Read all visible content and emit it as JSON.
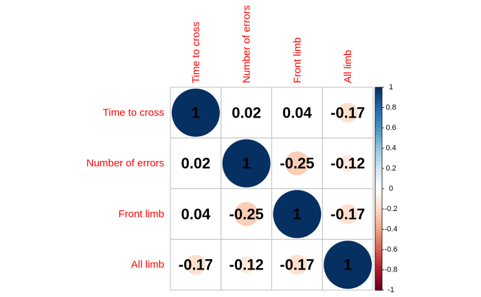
{
  "chart_data": {
    "type": "heatmap",
    "variables": [
      "Time to cross",
      "Number of errors",
      "Front limb",
      "All limb"
    ],
    "matrix": [
      [
        1,
        0.02,
        0.04,
        -0.17
      ],
      [
        0.02,
        1,
        -0.25,
        -0.12
      ],
      [
        0.04,
        -0.25,
        1,
        -0.17
      ],
      [
        -0.17,
        -0.12,
        -0.17,
        1
      ]
    ],
    "cell_labels": [
      [
        "1",
        "0.02",
        "0.04",
        "-0.17"
      ],
      [
        "0.02",
        "1",
        "-0.25",
        "-0.12"
      ],
      [
        "0.04",
        "-0.25",
        "1",
        "-0.17"
      ],
      [
        "-0.17",
        "-0.12",
        "-0.17",
        "1"
      ]
    ],
    "colorbar": {
      "range": [
        -1,
        1
      ],
      "ticks": [
        "1",
        "0.8",
        "0.6",
        "0.4",
        "0.2",
        "0",
        "-0.2",
        "-0.4",
        "-0.6",
        "-0.8",
        "-1"
      ],
      "tick_values": [
        1,
        0.8,
        0.6,
        0.4,
        0.2,
        0,
        -0.2,
        -0.4,
        -0.6,
        -0.8,
        -1
      ],
      "colors": [
        "#67001F",
        "#B2182B",
        "#D6604D",
        "#F4A582",
        "#FDDBC7",
        "#FFFFFF",
        "#D1E5F0",
        "#92C5DE",
        "#4393C3",
        "#2166AC",
        "#053061"
      ]
    },
    "label_color": "#FF0000",
    "grid": true
  }
}
